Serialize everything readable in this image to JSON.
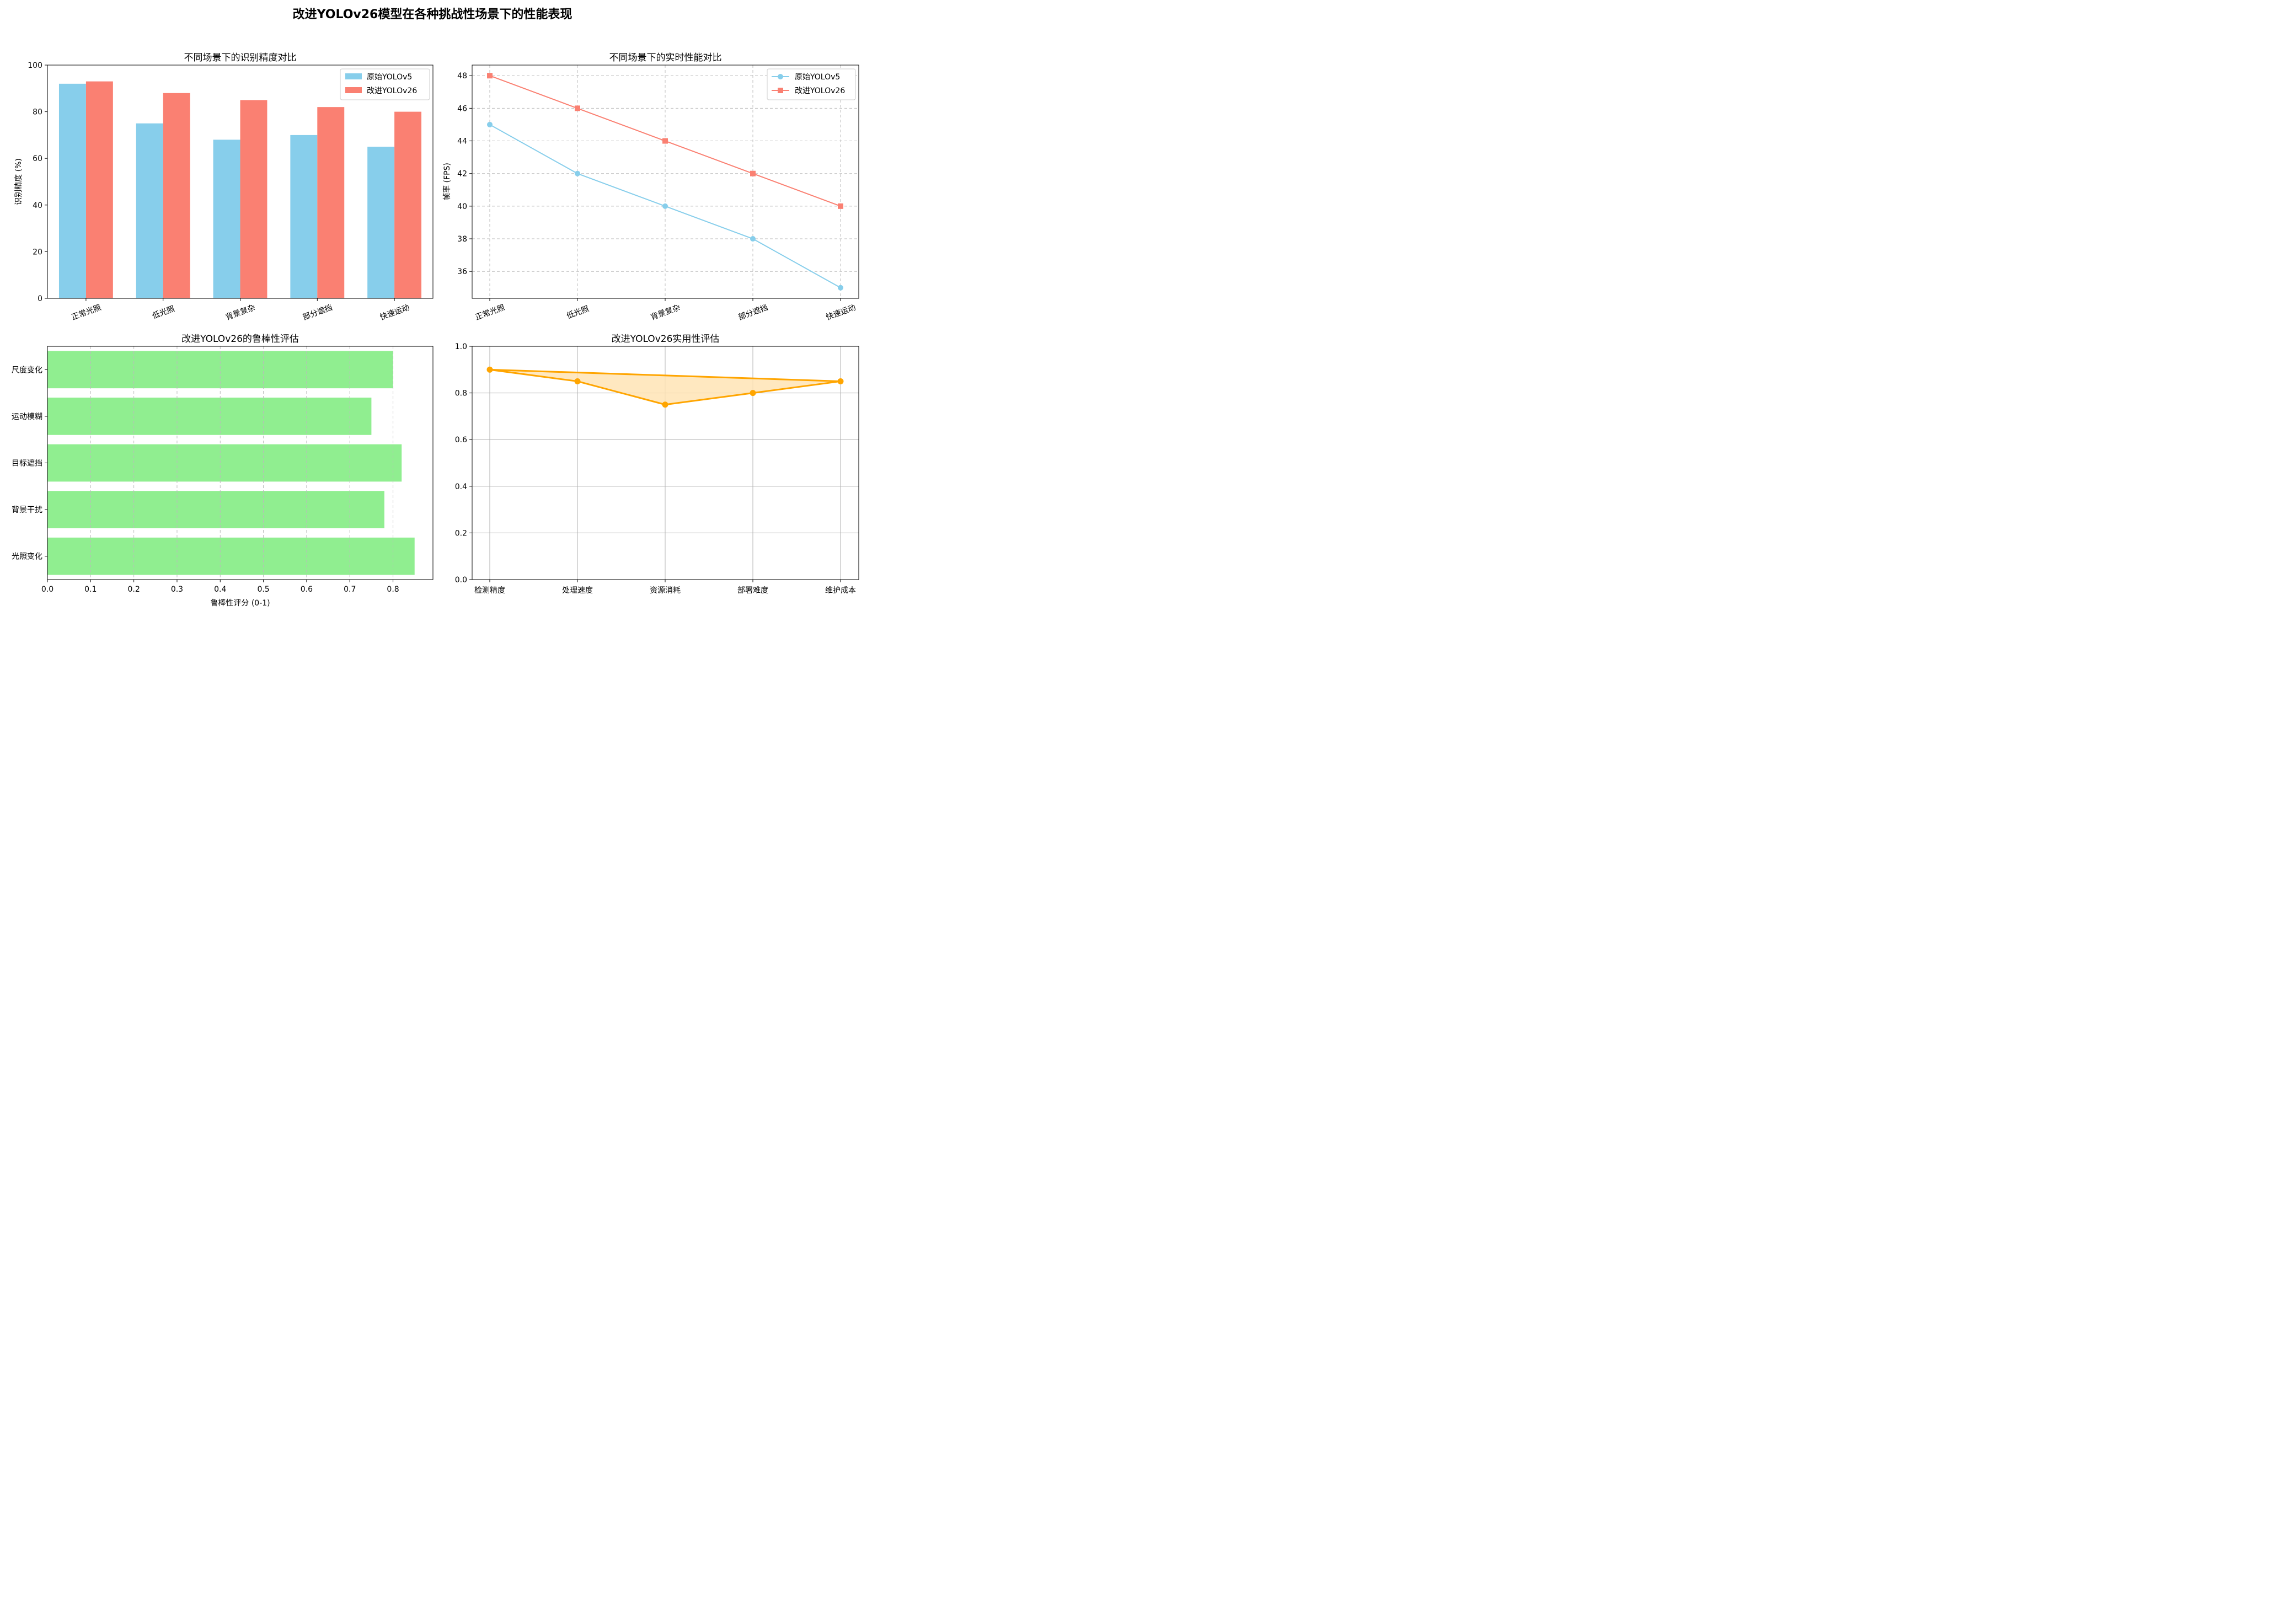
{
  "suptitle": "改进YOLOv26模型在各种挑战性场景下的性能表现",
  "colors": {
    "original": "#87ceeb",
    "improved": "#fa8072",
    "robust": "#90ee90",
    "radar": "#ffa500",
    "radarFill": "#ffe4b5"
  },
  "chart_data": [
    {
      "type": "bar",
      "title": "不同场景下的识别精度对比",
      "ylabel": "识别精度 (%)",
      "categories": [
        "正常光照",
        "低光照",
        "背景复杂",
        "部分遮挡",
        "快速运动"
      ],
      "ylim": [
        0,
        100
      ],
      "yticks": [
        "0",
        "20",
        "40",
        "60",
        "80",
        "100"
      ],
      "legend_position": "top-right",
      "series": [
        {
          "name": "原始YOLOv5",
          "values": [
            92,
            75,
            68,
            70,
            65
          ]
        },
        {
          "name": "改进YOLOv26",
          "values": [
            93,
            88,
            85,
            82,
            80
          ]
        }
      ]
    },
    {
      "type": "line",
      "title": "不同场景下的实时性能对比",
      "ylabel": "帧率 (FPS)",
      "categories": [
        "正常光照",
        "低光照",
        "背景复杂",
        "部分遮挡",
        "快速运动"
      ],
      "ylim": [
        34.35,
        48.65
      ],
      "yticks": [
        "36",
        "38",
        "40",
        "42",
        "44",
        "46",
        "48"
      ],
      "grid": true,
      "legend_position": "top-right",
      "series": [
        {
          "name": "原始YOLOv5",
          "values": [
            45,
            42,
            40,
            38,
            35
          ]
        },
        {
          "name": "改进YOLOv26",
          "values": [
            48,
            46,
            44,
            42,
            40
          ]
        }
      ]
    },
    {
      "type": "bar",
      "orientation": "horizontal",
      "title": "改进YOLOv26的鲁棒性评估",
      "xlabel": "鲁棒性评分 (0-1)",
      "categories": [
        "尺度变化",
        "运动模糊",
        "目标遮挡",
        "背景干扰",
        "光照变化"
      ],
      "values": [
        0.8,
        0.75,
        0.82,
        0.78,
        0.85
      ],
      "xlim": [
        0,
        0.8925
      ],
      "xticks": [
        "0.0",
        "0.1",
        "0.2",
        "0.3",
        "0.4",
        "0.5",
        "0.6",
        "0.7",
        "0.8"
      ],
      "grid": true
    },
    {
      "type": "area",
      "title": "改进YOLOv26实用性评估",
      "categories": [
        "检测精度",
        "处理速度",
        "资源消耗",
        "部署难度",
        "维护成本"
      ],
      "values": [
        0.9,
        0.85,
        0.75,
        0.8,
        0.85
      ],
      "ylim": [
        0,
        1
      ],
      "yticks": [
        "0.0",
        "0.2",
        "0.4",
        "0.6",
        "0.8",
        "1.0"
      ],
      "grid": true
    }
  ]
}
